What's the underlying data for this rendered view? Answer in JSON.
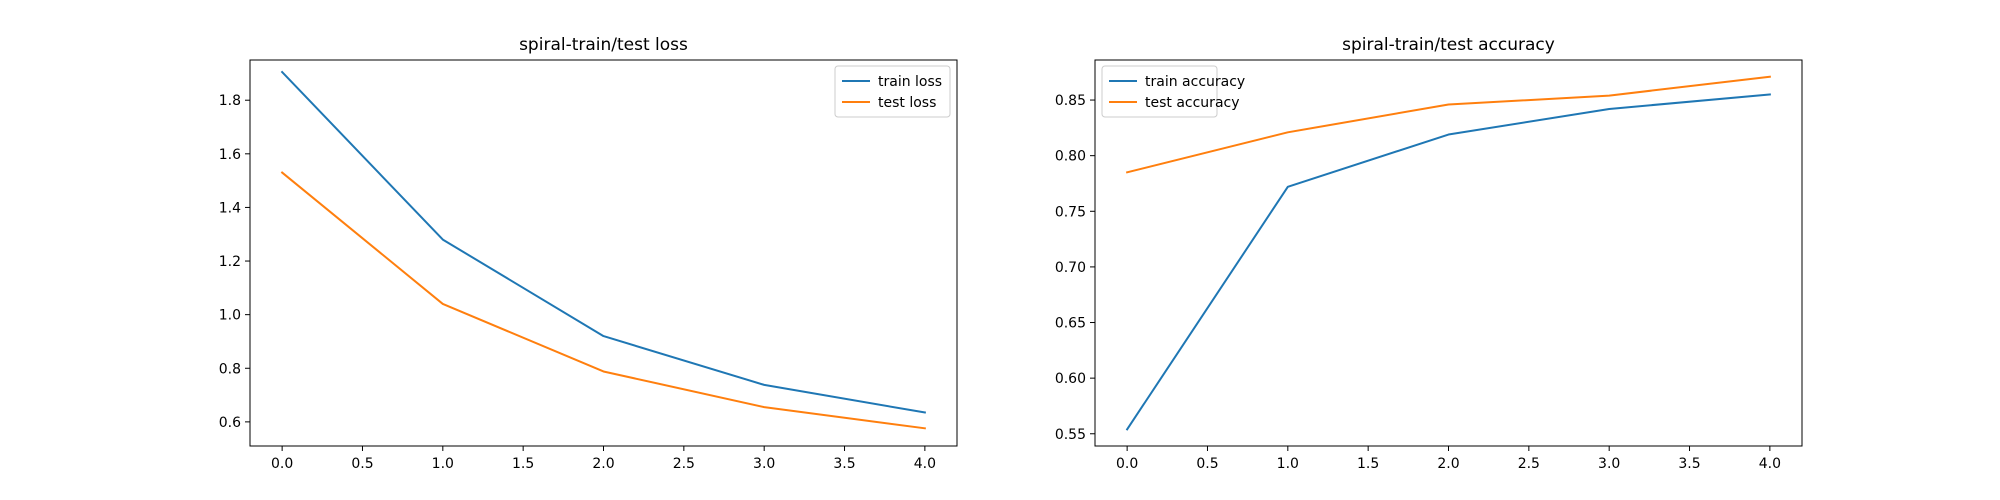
{
  "chart_data": [
    {
      "type": "line",
      "title": "spiral-train/test loss",
      "xlabel": "",
      "ylabel": "",
      "x": [
        0,
        1,
        2,
        3,
        4
      ],
      "xlim": [
        -0.2,
        4.2
      ],
      "ylim": [
        0.51,
        1.95
      ],
      "xticks": [
        0.0,
        0.5,
        1.0,
        1.5,
        2.0,
        2.5,
        3.0,
        3.5,
        4.0
      ],
      "xtick_labels": [
        "0.0",
        "0.5",
        "1.0",
        "1.5",
        "2.0",
        "2.5",
        "3.0",
        "3.5",
        "4.0"
      ],
      "yticks": [
        0.6,
        0.8,
        1.0,
        1.2,
        1.4,
        1.6,
        1.8
      ],
      "ytick_labels": [
        "0.6",
        "0.8",
        "1.0",
        "1.2",
        "1.4",
        "1.6",
        "1.8"
      ],
      "grid": false,
      "legend_position": "top-right",
      "series": [
        {
          "name": "train loss",
          "color": "#1f77b4",
          "values": [
            1.905,
            1.28,
            0.92,
            0.738,
            0.635
          ]
        },
        {
          "name": "test loss",
          "color": "#ff7f0e",
          "values": [
            1.53,
            1.04,
            0.788,
            0.655,
            0.576
          ]
        }
      ]
    },
    {
      "type": "line",
      "title": "spiral-train/test accuracy",
      "xlabel": "",
      "ylabel": "",
      "x": [
        0,
        1,
        2,
        3,
        4
      ],
      "xlim": [
        -0.2,
        4.2
      ],
      "ylim": [
        0.539,
        0.886
      ],
      "xticks": [
        0.0,
        0.5,
        1.0,
        1.5,
        2.0,
        2.5,
        3.0,
        3.5,
        4.0
      ],
      "xtick_labels": [
        "0.0",
        "0.5",
        "1.0",
        "1.5",
        "2.0",
        "2.5",
        "3.0",
        "3.5",
        "4.0"
      ],
      "yticks": [
        0.55,
        0.6,
        0.65,
        0.7,
        0.75,
        0.8,
        0.85
      ],
      "ytick_labels": [
        "0.55",
        "0.60",
        "0.65",
        "0.70",
        "0.75",
        "0.80",
        "0.85"
      ],
      "grid": false,
      "legend_position": "top-left",
      "series": [
        {
          "name": "train accuracy",
          "color": "#1f77b4",
          "values": [
            0.554,
            0.772,
            0.819,
            0.842,
            0.855
          ]
        },
        {
          "name": "test accuracy",
          "color": "#ff7f0e",
          "values": [
            0.785,
            0.821,
            0.846,
            0.854,
            0.871
          ]
        }
      ]
    }
  ]
}
